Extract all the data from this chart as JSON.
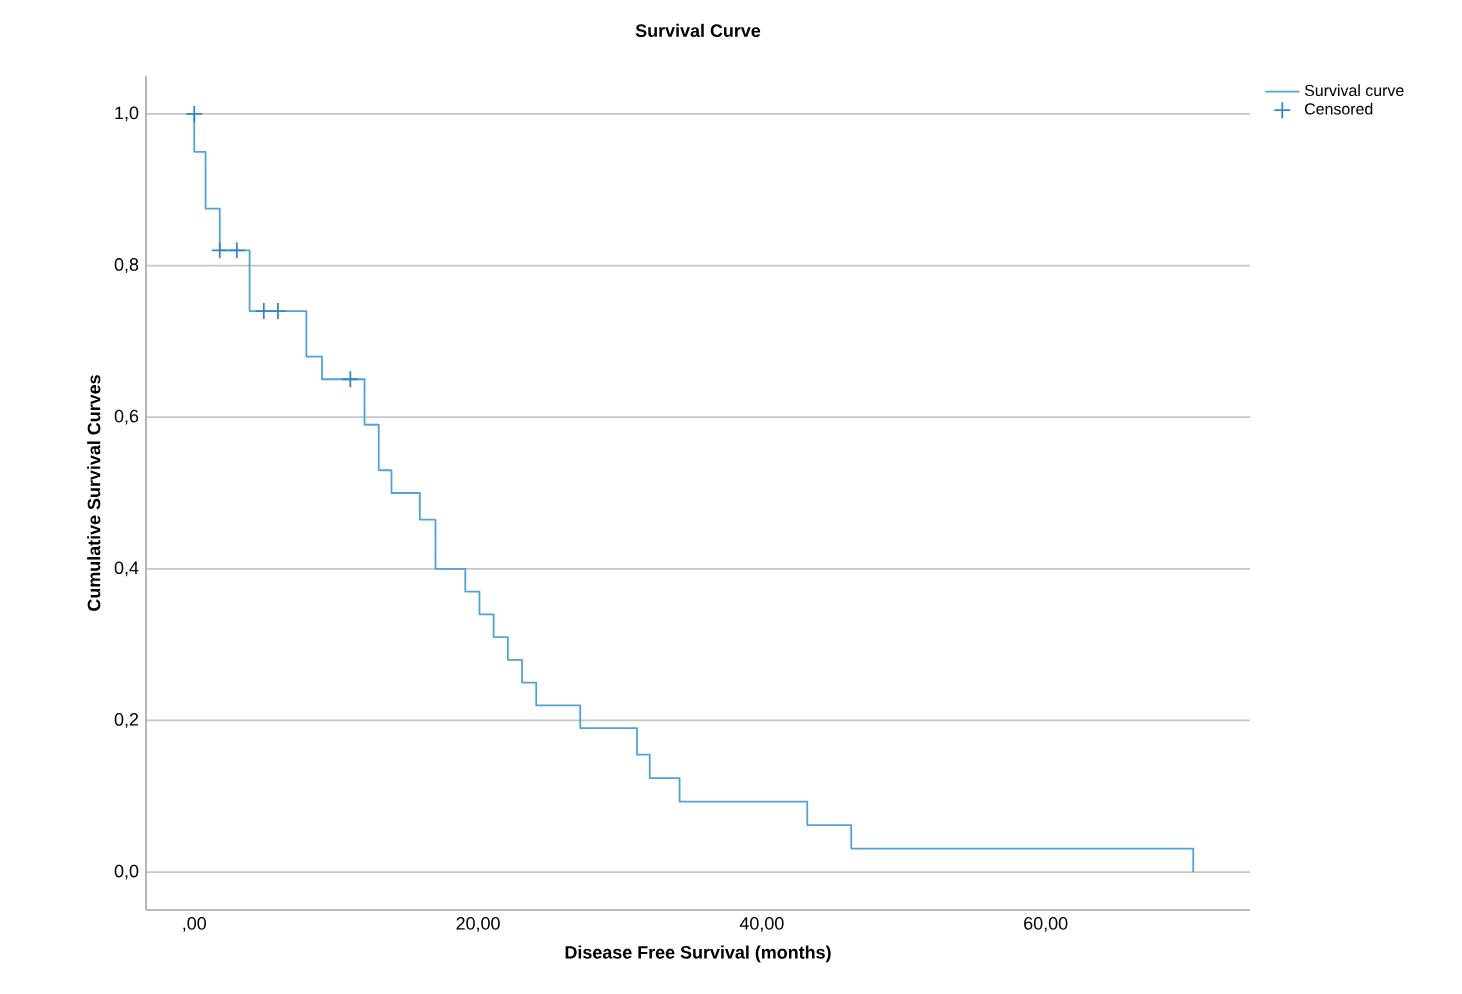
{
  "chart_data": {
    "type": "step",
    "title": "Survival Curve",
    "xlabel": "Disease Free Survival (months)",
    "ylabel": "Cumulative Survival Curves",
    "xlim": [
      -3.4,
      74.4
    ],
    "ylim": [
      -0.05,
      1.05
    ],
    "xticks": [
      {
        "value": 0,
        "label": ",00"
      },
      {
        "value": 20,
        "label": "20,00"
      },
      {
        "value": 40,
        "label": "40,00"
      },
      {
        "value": 60,
        "label": "60,00"
      }
    ],
    "yticks": [
      {
        "value": 0,
        "label": "0,0"
      },
      {
        "value": 0.2,
        "label": "0,2"
      },
      {
        "value": 0.4,
        "label": "0,4"
      },
      {
        "value": 0.6,
        "label": "0,6"
      },
      {
        "value": 0.8,
        "label": "0,8"
      },
      {
        "value": 1.0,
        "label": "1,0"
      }
    ],
    "grid": "y",
    "legend": "top right",
    "series": [
      {
        "name": "Survival curve",
        "color": "#4fa3d9",
        "marker": "none",
        "x": [
          0,
          0,
          0.8,
          1.8,
          3.9,
          7.9,
          9.0,
          12.0,
          13.0,
          13.9,
          15.9,
          17.0,
          19.1,
          20.1,
          21.1,
          22.1,
          23.1,
          24.1,
          27.2,
          31.2,
          32.1,
          34.2,
          43.2,
          46.3,
          70.4,
          70.4
        ],
        "values": [
          1.0,
          0.95,
          0.875,
          0.82,
          0.74,
          0.68,
          0.65,
          0.59,
          0.53,
          0.5,
          0.465,
          0.4,
          0.37,
          0.34,
          0.31,
          0.28,
          0.25,
          0.22,
          0.19,
          0.155,
          0.124,
          0.093,
          0.062,
          0.031,
          0.031,
          0
        ]
      },
      {
        "name": "Censored",
        "type": "scatter",
        "color": "#3a86c0",
        "marker": "cross",
        "x": [
          0,
          1.8,
          3.0,
          4.9,
          5.9,
          11.0
        ],
        "values": [
          1.0,
          0.82,
          0.82,
          0.74,
          0.74,
          0.65
        ]
      }
    ]
  }
}
